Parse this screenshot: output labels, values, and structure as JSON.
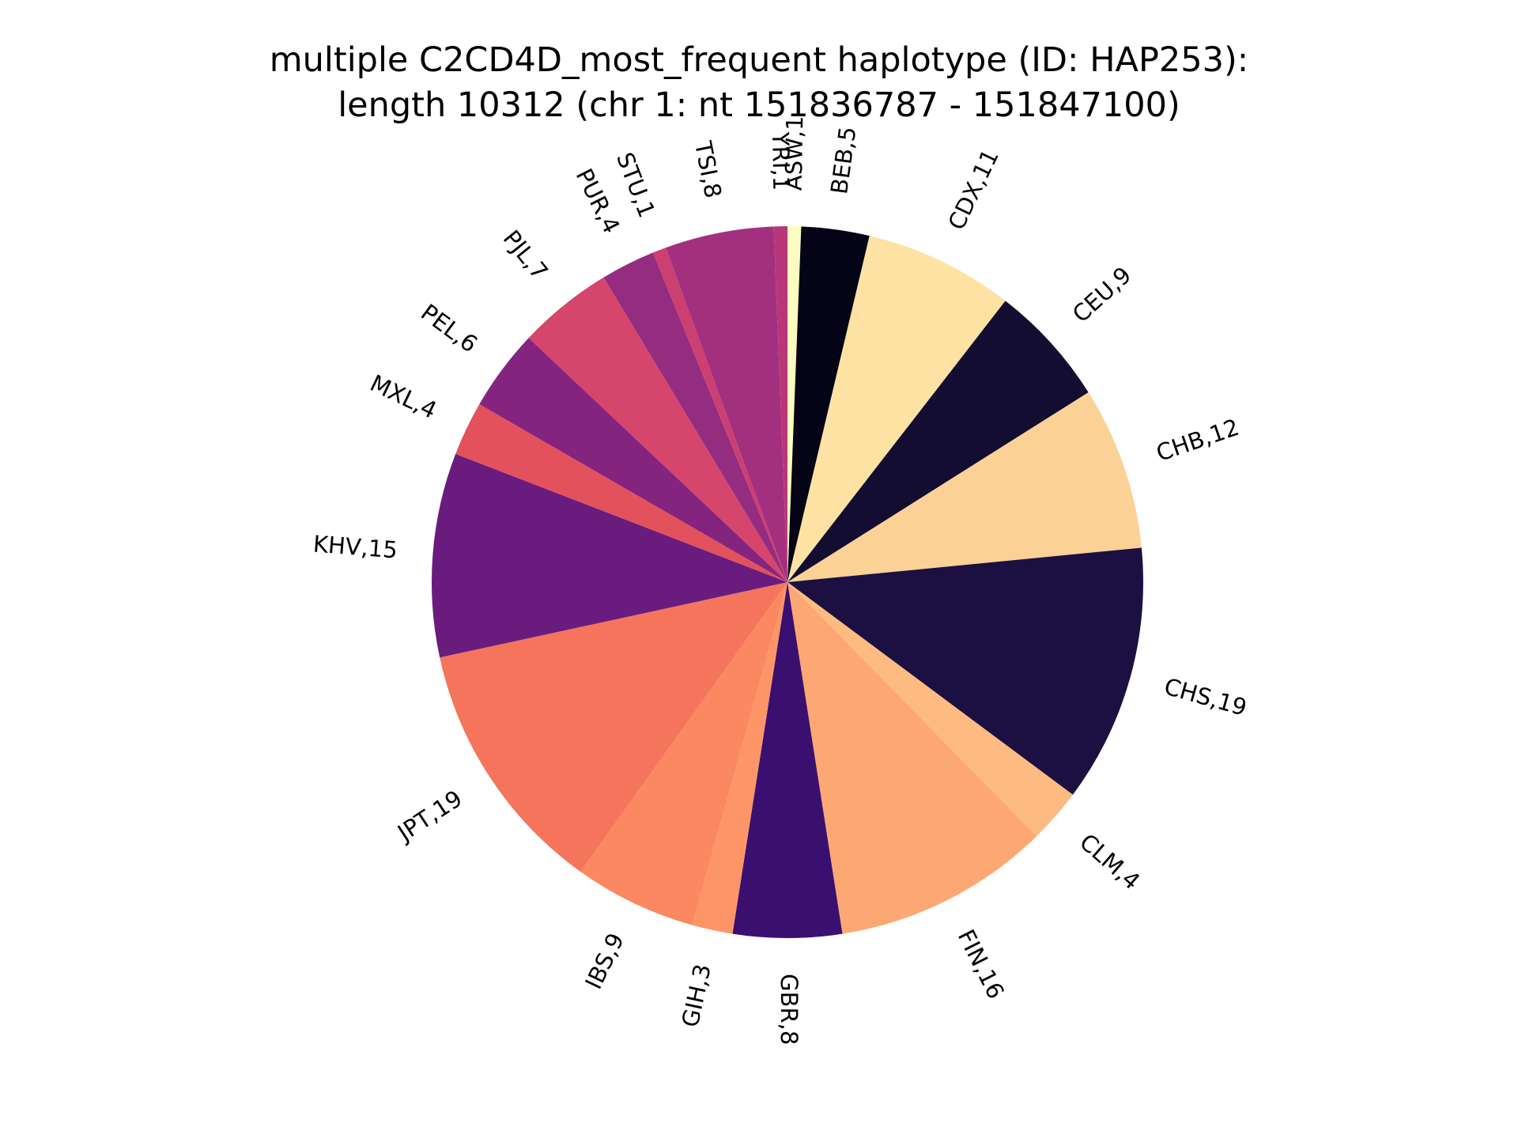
{
  "chart_data": {
    "type": "pie",
    "title_lines": [
      "multiple C2CD4D_most_frequent haplotype (ID: HAP253):",
      "length 10312 (chr 1: nt 151836787 - 151847100)"
    ],
    "start_angle_deg": 90,
    "direction": "clockwise",
    "slices": [
      {
        "name": "ASW",
        "value": 1,
        "label": "ASW,1",
        "color": "#fcfdbf"
      },
      {
        "name": "BEB",
        "value": 5,
        "label": "BEB,5",
        "color": "#050416"
      },
      {
        "name": "CDX",
        "value": 11,
        "label": "CDX,11",
        "color": "#fde2a3"
      },
      {
        "name": "CEU",
        "value": 9,
        "label": "CEU,9",
        "color": "#120d31"
      },
      {
        "name": "CHB",
        "value": 12,
        "label": "CHB,12",
        "color": "#fcd195"
      },
      {
        "name": "CHS",
        "value": 19,
        "label": "CHS,19",
        "color": "#1c1042"
      },
      {
        "name": "CLM",
        "value": 4,
        "label": "CLM,4",
        "color": "#febb81"
      },
      {
        "name": "FIN",
        "value": 16,
        "label": "FIN,16",
        "color": "#fda872"
      },
      {
        "name": "GBR",
        "value": 8,
        "label": "GBR,8",
        "color": "#3b0f70"
      },
      {
        "name": "GIH",
        "value": 3,
        "label": "GIH,3",
        "color": "#fd9567"
      },
      {
        "name": "IBS",
        "value": 9,
        "label": "IBS,9",
        "color": "#fb8861"
      },
      {
        "name": "JPT",
        "value": 19,
        "label": "JPT,19",
        "color": "#f4755c"
      },
      {
        "name": "KHV",
        "value": 15,
        "label": "KHV,15",
        "color": "#6a1c7e"
      },
      {
        "name": "MXL",
        "value": 4,
        "label": "MXL,4",
        "color": "#e3515c"
      },
      {
        "name": "PEL",
        "value": 6,
        "label": "PEL,6",
        "color": "#85247f"
      },
      {
        "name": "PJL",
        "value": 7,
        "label": "PJL,7",
        "color": "#d6456c"
      },
      {
        "name": "PUR",
        "value": 4,
        "label": "PUR,4",
        "color": "#942c80"
      },
      {
        "name": "STU",
        "value": 1,
        "label": "STU,1",
        "color": "#cc3f71"
      },
      {
        "name": "TSI",
        "value": 8,
        "label": "TSI,8",
        "color": "#a3307e"
      },
      {
        "name": "YRI",
        "value": 1,
        "label": "YRI,1",
        "color": "#b73779"
      }
    ]
  }
}
